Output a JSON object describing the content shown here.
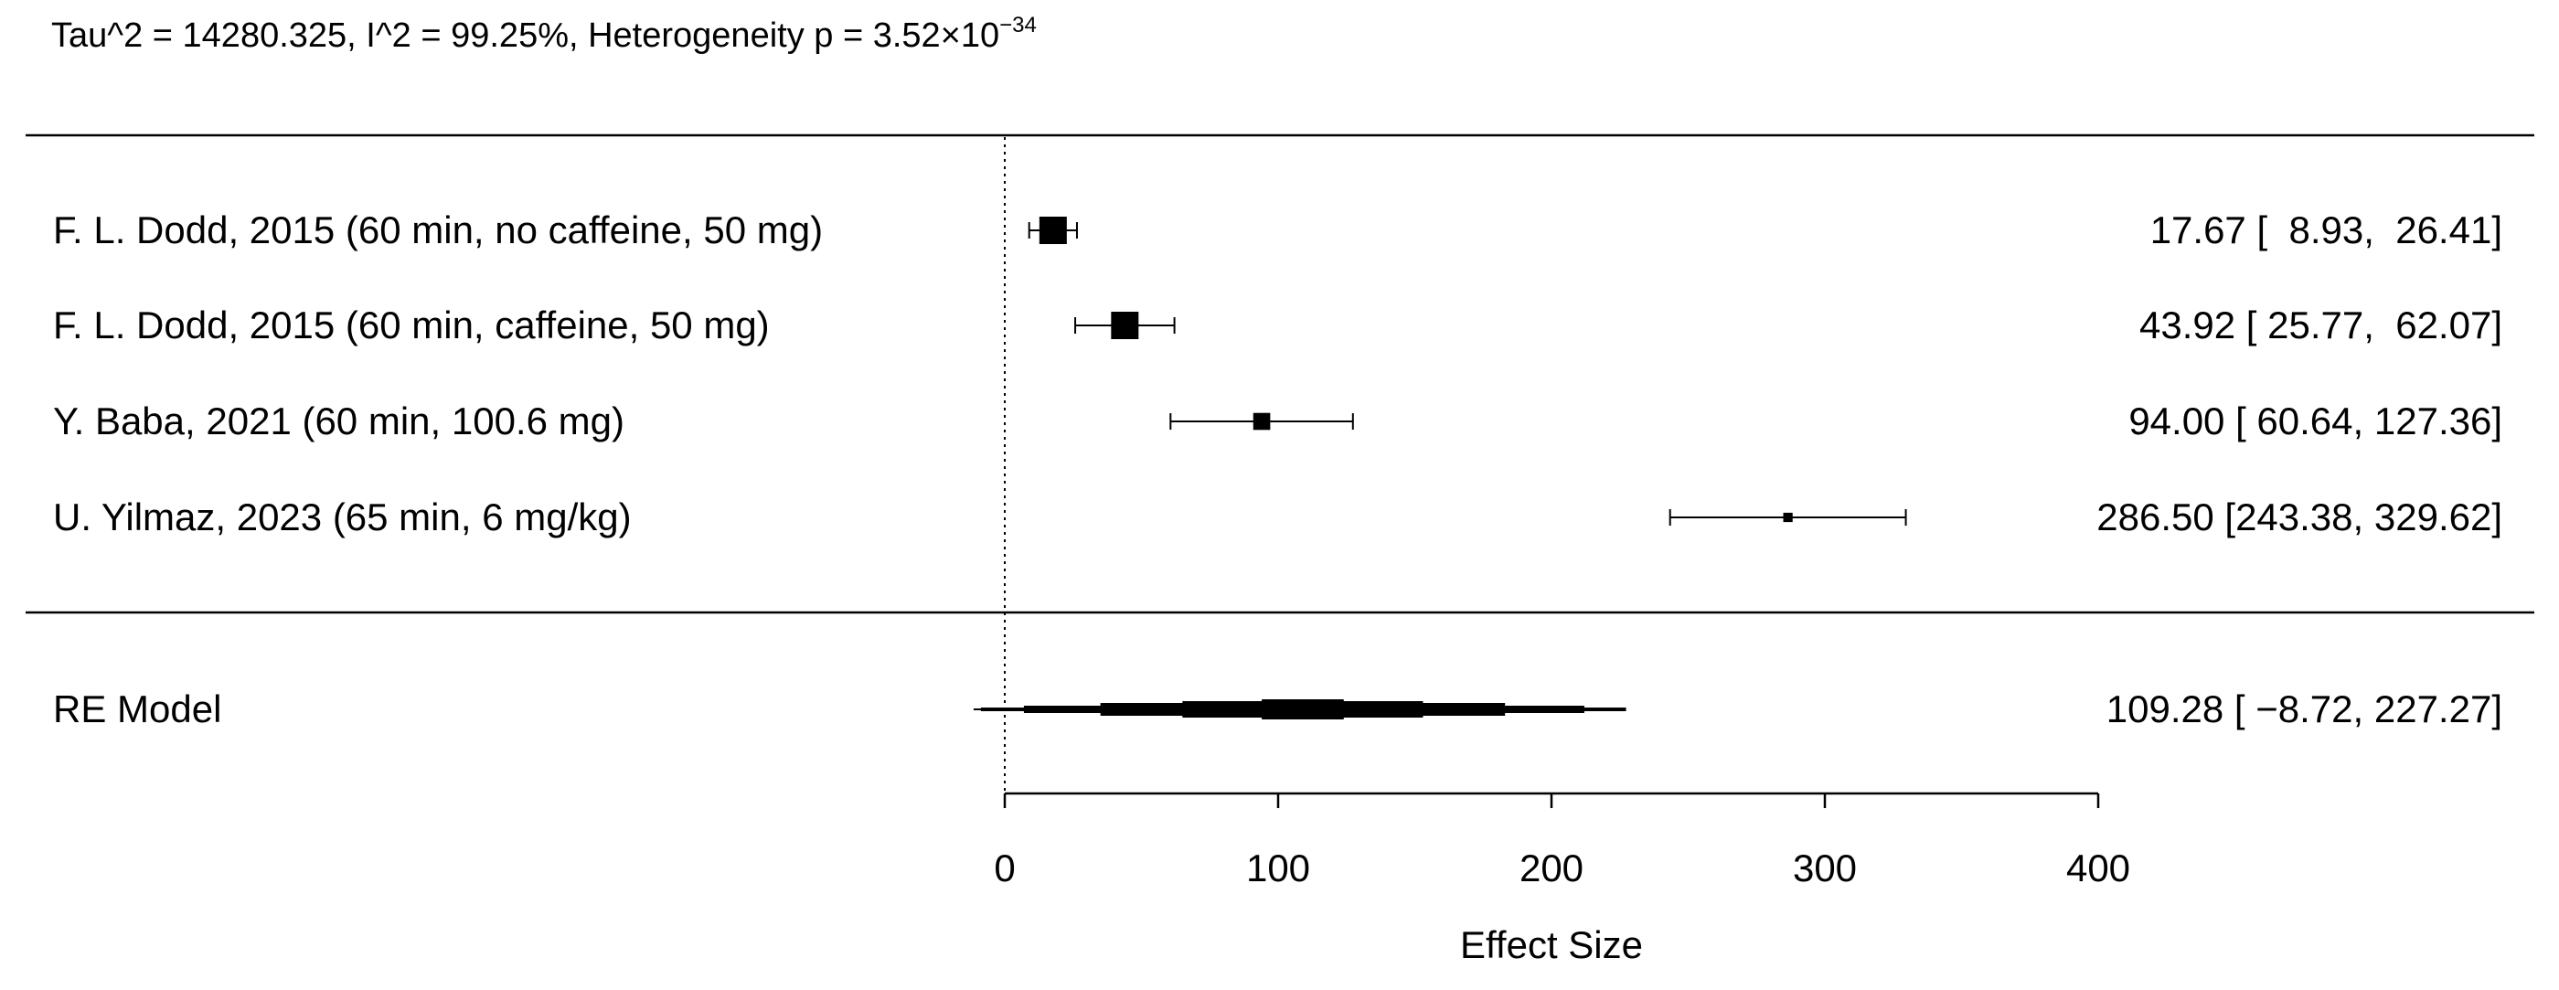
{
  "header": {
    "stats_prefix": "Tau^2 = 14280.325, I^2 = 99.25%, Heterogeneity p = 3.52×10",
    "stats_exponent": "−34"
  },
  "chart_data": {
    "type": "forest",
    "xlabel": "Effect Size",
    "xlim": [
      0,
      400
    ],
    "xticks": [
      0,
      100,
      200,
      300,
      400
    ],
    "xtick_labels": [
      "0",
      "100",
      "200",
      "300",
      "400"
    ],
    "reference_line": 0,
    "studies": [
      {
        "label": "F. L. Dodd, 2015 (60 min, no caffeine, 50 mg)",
        "estimate": 17.67,
        "lower": 8.93,
        "upper": 26.41,
        "ci_text": "17.67 [  8.93,  26.41]",
        "weight_rel": 1.0
      },
      {
        "label": "F. L. Dodd, 2015 (60 min, caffeine, 50 mg)",
        "estimate": 43.92,
        "lower": 25.77,
        "upper": 62.07,
        "ci_text": "43.92 [ 25.77,  62.07]",
        "weight_rel": 1.0
      },
      {
        "label": "Y. Baba, 2021 (60 min, 100.6 mg)",
        "estimate": 94.0,
        "lower": 60.64,
        "upper": 127.36,
        "ci_text": "94.00 [ 60.64, 127.36]",
        "weight_rel": 0.62
      },
      {
        "label": "U. Yilmaz, 2023 (65 min, 6 mg/kg)",
        "estimate": 286.5,
        "lower": 243.38,
        "upper": 329.62,
        "ci_text": "286.50 [243.38, 329.62]",
        "weight_rel": 0.34
      }
    ],
    "summary": {
      "label": "RE Model",
      "estimate": 109.28,
      "lower": -8.72,
      "upper": 227.27,
      "ci_text": "109.28 [ −8.72, 227.27]",
      "bands": [
        {
          "lower": -8.72,
          "upper": 227.27
        },
        {
          "lower": 7.0,
          "upper": 212.0
        },
        {
          "lower": 35.0,
          "upper": 183.0
        },
        {
          "lower": 65.0,
          "upper": 153.0
        },
        {
          "lower": 94.0,
          "upper": 124.0
        }
      ]
    }
  }
}
